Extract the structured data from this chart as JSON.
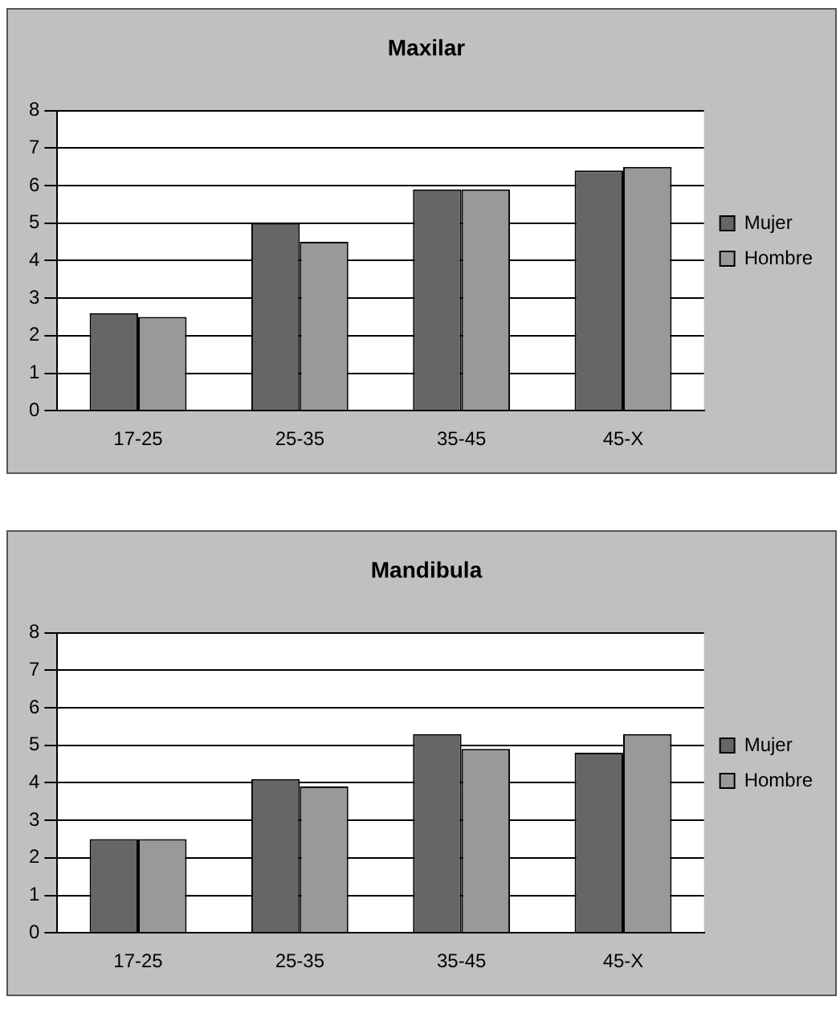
{
  "chart_data": [
    {
      "type": "bar",
      "title": "Maxilar",
      "categories": [
        "17-25",
        "25-35",
        "35-45",
        "45-X"
      ],
      "series": [
        {
          "name": "Mujer",
          "color": "#666666",
          "values": [
            2.6,
            5.0,
            5.9,
            6.4
          ]
        },
        {
          "name": "Hombre",
          "color": "#999999",
          "values": [
            2.5,
            4.5,
            5.9,
            6.5
          ]
        }
      ],
      "ylim": [
        0,
        8
      ],
      "yticks": [
        0,
        1,
        2,
        3,
        4,
        5,
        6,
        7,
        8
      ],
      "grid": "y",
      "legend": "right"
    },
    {
      "type": "bar",
      "title": "Mandibula",
      "categories": [
        "17-25",
        "25-35",
        "35-45",
        "45-X"
      ],
      "series": [
        {
          "name": "Mujer",
          "color": "#666666",
          "values": [
            2.5,
            4.1,
            5.3,
            4.8
          ]
        },
        {
          "name": "Hombre",
          "color": "#999999",
          "values": [
            2.5,
            3.9,
            4.9,
            5.3
          ]
        }
      ],
      "ylim": [
        0,
        8
      ],
      "yticks": [
        0,
        1,
        2,
        3,
        4,
        5,
        6,
        7,
        8
      ],
      "grid": "y",
      "legend": "right"
    }
  ]
}
